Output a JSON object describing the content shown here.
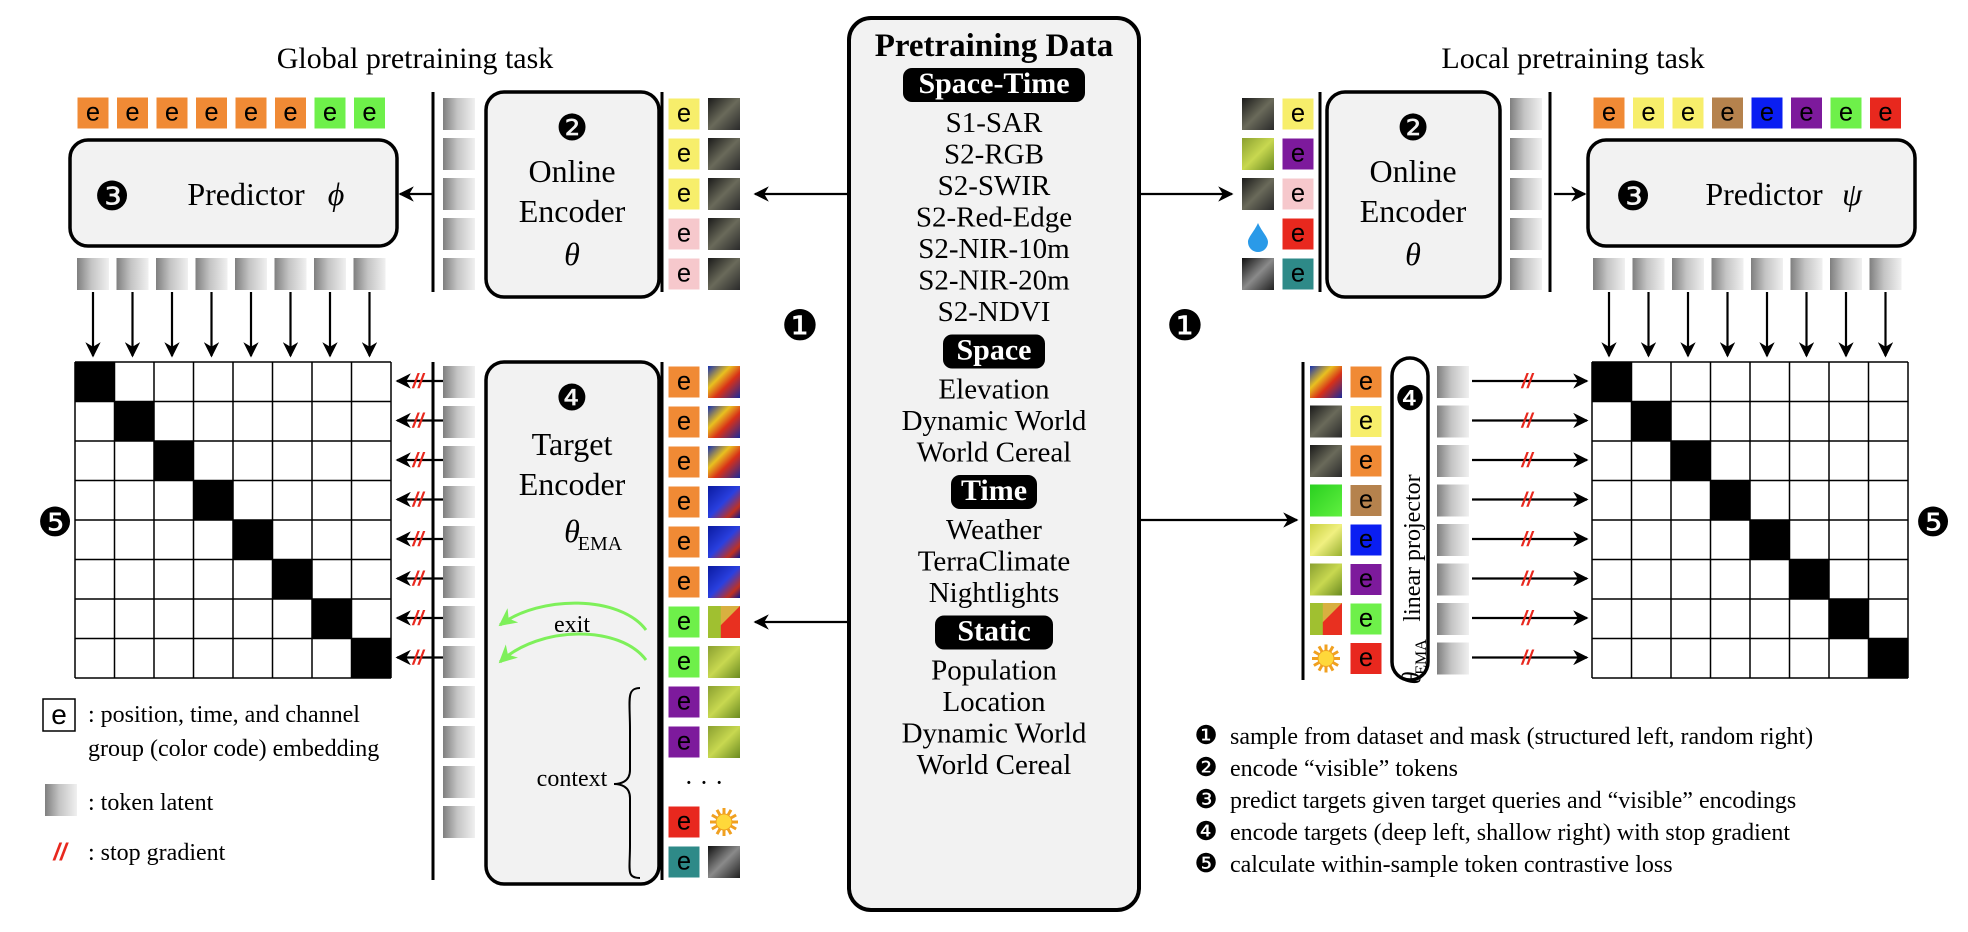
{
  "headings": {
    "global": "Global pretraining task",
    "local": "Local pretraining task",
    "pretraining_data": "Pretraining Data"
  },
  "labels": {
    "online_encoder": [
      "Online",
      "Encoder",
      "θ"
    ],
    "target_encoder": [
      "Target",
      "Encoder",
      "θ",
      "EMA"
    ],
    "predictor_phi": [
      "Predictor",
      "ϕ"
    ],
    "predictor_psi": [
      "Predictor",
      "ψ"
    ],
    "exit": "exit",
    "context": "context",
    "ellipsis": "· · ·",
    "linear_projector": "linear projector",
    "theta_ema": [
      "θ",
      "EMA"
    ],
    "token_letter": "e"
  },
  "step_numbers": [
    "❶",
    "❷",
    "❸",
    "❹",
    "❺"
  ],
  "data_groups": [
    {
      "name": "Space-Time",
      "items": [
        "S1-SAR",
        "S2-RGB",
        "S2-SWIR",
        "S2-Red-Edge",
        "S2-NIR-10m",
        "S2-NIR-20m",
        "S2-NDVI"
      ]
    },
    {
      "name": "Space",
      "items": [
        "Elevation",
        "Dynamic World",
        "World Cereal"
      ]
    },
    {
      "name": "Time",
      "items": [
        "Weather",
        "TerraClimate",
        "Nightlights"
      ]
    },
    {
      "name": "Static",
      "items": [
        "Population",
        "Location",
        "Dynamic World",
        "World Cereal"
      ]
    }
  ],
  "legend": [
    {
      "symbol": "e",
      "text": [
        ": position, time, and channel",
        "group (color code) embedding"
      ]
    },
    {
      "symbol": "token",
      "text": [
        ": token latent"
      ]
    },
    {
      "symbol": "//",
      "text": [
        ": stop gradient"
      ]
    }
  ],
  "steps": [
    {
      "num": "❶",
      "text": "sample from dataset and mask (structured left, random right)"
    },
    {
      "num": "❷",
      "text": "encode “visible” tokens"
    },
    {
      "num": "❸",
      "text": "predict targets given target queries and “visible” encodings"
    },
    {
      "num": "❹",
      "text": "encode targets (deep left, shallow right) with stop gradient"
    },
    {
      "num": "❺",
      "text": "calculate within-sample token contrastive loss"
    }
  ],
  "colors": {
    "orange": "#f08a35",
    "green": "#6ef04a",
    "yellow": "#f7ee6b",
    "pink": "#f6c8cc",
    "brown": "#b5824d",
    "blue": "#0a1ef2",
    "purple": "#7d1a9c",
    "red": "#e8281e",
    "teal": "#2e8a88",
    "stop_gradient": "#e8281e",
    "exit_arrow": "#7ef05a"
  },
  "token_colors": {
    "global_pred_top": [
      "orange",
      "orange",
      "orange",
      "orange",
      "orange",
      "orange",
      "green",
      "green"
    ],
    "global_online": [
      "yellow",
      "yellow",
      "yellow",
      "pink",
      "pink"
    ],
    "global_target": [
      "orange",
      "orange",
      "orange",
      "orange",
      "orange",
      "orange",
      "green",
      "green",
      "purple",
      "purple",
      "red",
      "teal"
    ],
    "local_pred_top": [
      "orange",
      "yellow",
      "yellow",
      "brown",
      "blue",
      "purple",
      "green",
      "red"
    ],
    "local_online": [
      "yellow",
      "purple",
      "pink",
      "red",
      "teal"
    ],
    "local_target": [
      "orange",
      "yellow",
      "orange",
      "brown",
      "blue",
      "purple",
      "green",
      "red"
    ]
  },
  "thumbnails": {
    "global_online": [
      "sar-thumb",
      "sar-thumb",
      "sar-thumb",
      "sar-thumb",
      "sar-thumb"
    ],
    "global_target": [
      "rgb-heat-thumb",
      "rgb-heat-thumb",
      "rgb-heat-thumb",
      "blue-heat-thumb",
      "blue-heat-thumb",
      "blue-heat-thumb",
      "landcover-thumb",
      "green-field-thumb",
      "green-field-thumb",
      "green-field-thumb",
      "sun-icon",
      "nightlight-thumb"
    ],
    "local_online": [
      "sar-thumb",
      "green-field-thumb",
      "sar-thumb",
      "water-drop-icon",
      "nightlight-thumb"
    ],
    "local_target": [
      "rgb-heat-thumb",
      "sar-thumb",
      "sar-thumb",
      "bright-green-thumb",
      "yellow-field-thumb",
      "green-field-thumb",
      "landcover-thumb",
      "sun-icon"
    ]
  }
}
